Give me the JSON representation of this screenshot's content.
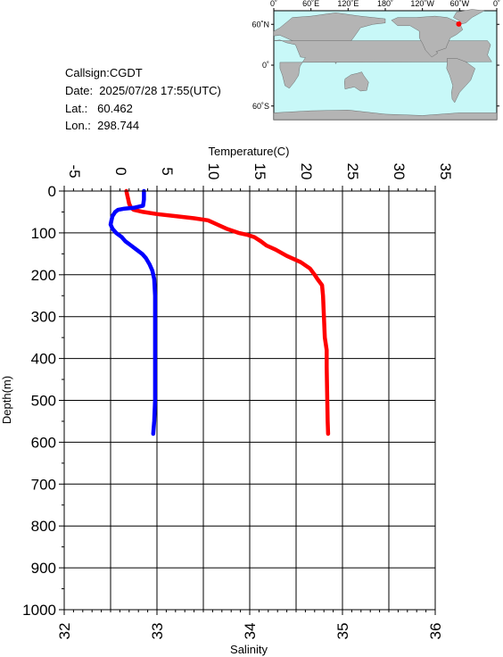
{
  "station": {
    "callsign_line": "Callsign:CGDT",
    "date_line": "Date:  2025/07/28 17:55(UTC)",
    "lat_line": "Lat.:   60.462",
    "lon_line": "Lon.:  298.744"
  },
  "map": {
    "top_labels": [
      "0˚",
      "60˚E",
      "120˚E",
      "180˚",
      "120˚W",
      "60˚W",
      "0˚"
    ],
    "side_labels": [
      "60˚N",
      "0˚",
      "60˚S"
    ],
    "ocean_color": "#c8f8f8",
    "land_color": "#b4b4b4",
    "marker_color": "#ff0000",
    "marker_lat": 60.462,
    "marker_lon": 298.744
  },
  "chart_data": {
    "type": "line",
    "ylabel": "Depth(m)",
    "ylim": [
      1000,
      0
    ],
    "yticks": [
      "0",
      "100",
      "200",
      "300",
      "400",
      "500",
      "600",
      "700",
      "800",
      "900",
      "1000"
    ],
    "top_axis": {
      "label": "Temperature(C)",
      "range": [
        -5,
        35
      ],
      "ticks": [
        "-5",
        "0",
        "5",
        "10",
        "15",
        "20",
        "25",
        "30",
        "35"
      ]
    },
    "bottom_axis": {
      "label": "Salinity",
      "range": [
        32,
        36
      ],
      "ticks": [
        "32",
        "33",
        "34",
        "35",
        "36"
      ]
    },
    "grid": true,
    "series": [
      {
        "axis": "top",
        "color": "#ff0000",
        "points": [
          [
            1.7,
            0
          ],
          [
            1.8,
            10
          ],
          [
            1.9,
            20
          ],
          [
            2.0,
            30
          ],
          [
            2.2,
            40
          ],
          [
            2.5,
            45
          ],
          [
            3.5,
            50
          ],
          [
            5.0,
            55
          ],
          [
            7.0,
            60
          ],
          [
            9.0,
            65
          ],
          [
            10.5,
            70
          ],
          [
            11.5,
            80
          ],
          [
            12.5,
            90
          ],
          [
            13.8,
            100
          ],
          [
            14.8,
            105
          ],
          [
            15.5,
            110
          ],
          [
            16.2,
            120
          ],
          [
            16.8,
            130
          ],
          [
            17.8,
            140
          ],
          [
            19.0,
            155
          ],
          [
            20.5,
            170
          ],
          [
            21.5,
            185
          ],
          [
            22.0,
            200
          ],
          [
            22.3,
            210
          ],
          [
            22.8,
            225
          ],
          [
            22.9,
            250
          ],
          [
            23.0,
            300
          ],
          [
            23.1,
            350
          ],
          [
            23.3,
            380
          ],
          [
            23.3,
            420
          ],
          [
            23.35,
            480
          ],
          [
            23.4,
            550
          ],
          [
            23.45,
            580
          ]
        ]
      },
      {
        "axis": "bottom",
        "color": "#0000ff",
        "points": [
          [
            32.86,
            0
          ],
          [
            32.86,
            20
          ],
          [
            32.85,
            35
          ],
          [
            32.75,
            40
          ],
          [
            32.65,
            42
          ],
          [
            32.58,
            45
          ],
          [
            32.55,
            50
          ],
          [
            32.52,
            60
          ],
          [
            32.51,
            70
          ],
          [
            32.5,
            80
          ],
          [
            32.52,
            90
          ],
          [
            32.56,
            100
          ],
          [
            32.62,
            110
          ],
          [
            32.66,
            120
          ],
          [
            32.72,
            130
          ],
          [
            32.78,
            140
          ],
          [
            32.84,
            150
          ],
          [
            32.88,
            160
          ],
          [
            32.92,
            175
          ],
          [
            32.95,
            190
          ],
          [
            32.97,
            210
          ],
          [
            32.98,
            250
          ],
          [
            32.98,
            300
          ],
          [
            32.98,
            400
          ],
          [
            32.98,
            500
          ],
          [
            32.97,
            550
          ],
          [
            32.96,
            580
          ]
        ]
      }
    ]
  }
}
